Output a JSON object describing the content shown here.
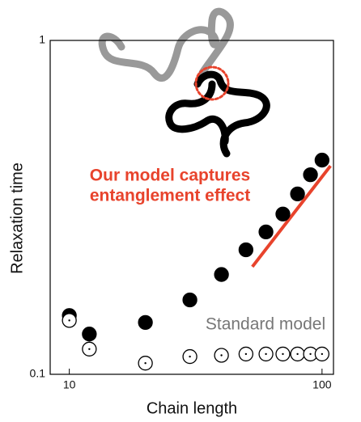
{
  "chart_data": {
    "type": "scatter",
    "xlabel": "Chain length",
    "ylabel": "Relaxation time",
    "xlog": true,
    "ylog": true,
    "xlim": [
      8.4,
      111
    ],
    "ylim": [
      0.1,
      1
    ],
    "xticks": [
      10,
      100
    ],
    "yticks": [
      0.1,
      1
    ],
    "series": [
      {
        "color": "#000000",
        "marker": "filled",
        "x": [
          10,
          12,
          20,
          30,
          40,
          50,
          60,
          70,
          80,
          90,
          100
        ],
        "values": [
          0.15,
          0.132,
          0.143,
          0.167,
          0.199,
          0.236,
          0.267,
          0.302,
          0.347,
          0.396,
          0.438
        ]
      },
      {
        "color": "#000000",
        "marker": "open-dot",
        "x": [
          10,
          12,
          20,
          30,
          40,
          50,
          60,
          70,
          80,
          90,
          100
        ],
        "values": [
          0.145,
          0.119,
          0.108,
          0.113,
          0.114,
          0.115,
          0.115,
          0.115,
          0.115,
          0.115,
          0.115
        ]
      }
    ],
    "reference_line": {
      "color": "#e8432c",
      "x": [
        53,
        108
      ],
      "values": [
        0.21,
        0.421
      ]
    },
    "annotations": [
      {
        "text": "Our model captures",
        "color": "#e8432c"
      },
      {
        "text": "entanglement effect",
        "color": "#e8432c"
      },
      {
        "text": "Standard model",
        "color": "#777777"
      }
    ]
  }
}
